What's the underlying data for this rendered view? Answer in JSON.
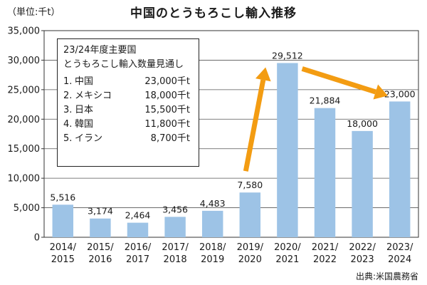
{
  "title": "中国のとうもろこし輸入推移",
  "unit_label": "（単位:千t）",
  "source": "出典:米国農務省",
  "legend": {
    "title_line1": "23/24年度主要国",
    "title_line2": "とうもろこし輸入数量見通し",
    "items": [
      {
        "rank": "1.",
        "country": "中国",
        "amount": "23,000千t"
      },
      {
        "rank": "2.",
        "country": "メキシコ",
        "amount": "18,000千t"
      },
      {
        "rank": "3.",
        "country": "日本",
        "amount": "15,500千t"
      },
      {
        "rank": "4.",
        "country": "韓国",
        "amount": "11,800千t"
      },
      {
        "rank": "5.",
        "country": "イラン",
        "amount": "8,700千t"
      }
    ]
  },
  "colors": {
    "bar": "#9dc3e6",
    "arrow": "#f39c12",
    "grid": "#555555"
  },
  "chart_data": {
    "type": "bar",
    "title": "中国のとうもろこし輸入推移",
    "ylim": [
      0,
      35000
    ],
    "yticks": [
      0,
      5000,
      10000,
      15000,
      20000,
      25000,
      30000,
      35000
    ],
    "ytick_labels": [
      "0",
      "5,000",
      "10,000",
      "15,000",
      "20,000",
      "25,000",
      "30,000",
      "35,000"
    ],
    "categories": [
      [
        "2014/",
        "2015"
      ],
      [
        "2015/",
        "2016"
      ],
      [
        "2016/",
        "2017"
      ],
      [
        "2017/",
        "2018"
      ],
      [
        "2018/",
        "2019"
      ],
      [
        "2019/",
        "2020"
      ],
      [
        "2020/",
        "2021"
      ],
      [
        "2021/",
        "2022"
      ],
      [
        "2022/",
        "2023"
      ],
      [
        "2023/",
        "2024"
      ]
    ],
    "values": [
      5516,
      3174,
      2464,
      3456,
      4483,
      7580,
      29512,
      21884,
      18000,
      23000
    ],
    "value_labels": [
      "5,516",
      "3,174",
      "2,464",
      "3,456",
      "4,483",
      "7,580",
      "29,512",
      "21,884",
      "18,000",
      "23,000"
    ],
    "arrows": [
      {
        "from": "2019/2020",
        "to": "2020/2021"
      },
      {
        "from": "2020/2021",
        "to": "2023/2024"
      }
    ]
  }
}
